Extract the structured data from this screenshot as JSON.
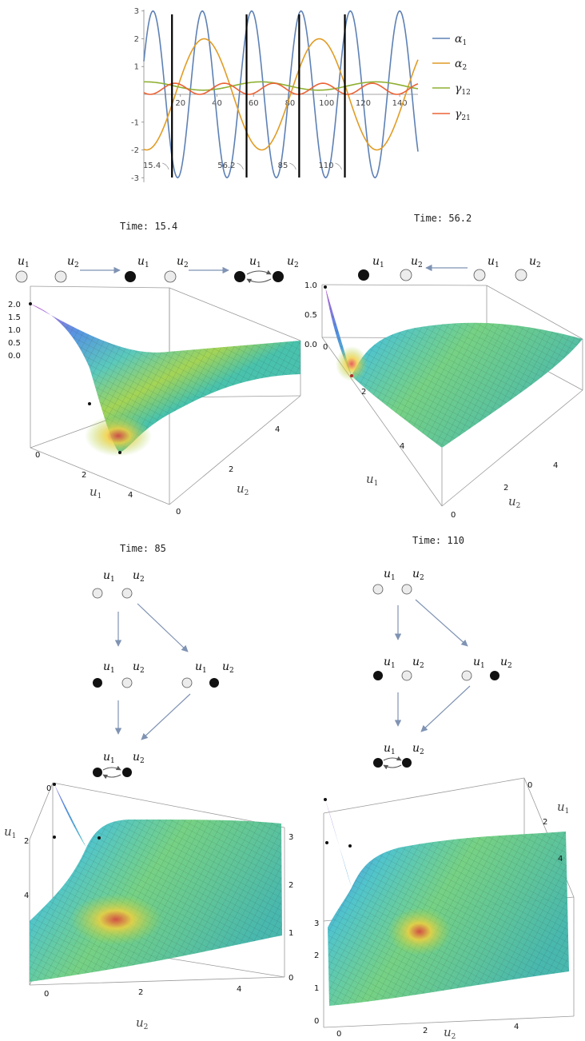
{
  "chart_data": {
    "type": "line",
    "xlim": [
      0,
      150
    ],
    "ylim": [
      -3.2,
      3.2
    ],
    "x_ticks": [
      "20",
      "40",
      "60",
      "80",
      "100",
      "120",
      "140"
    ],
    "y_ticks": [
      "3",
      "2",
      "1",
      "-1",
      "-2",
      "-3"
    ],
    "legend_placement": "right",
    "series": [
      {
        "name": "α1",
        "color": "#5e81b5",
        "amplitude": 3,
        "period": 27,
        "phase_peak": 5
      },
      {
        "name": "α2",
        "color": "#e19c24",
        "amplitude": 2,
        "period": 63,
        "phase_peak": 33
      },
      {
        "name": "γ12",
        "color": "#8fb032",
        "amplitude": 0.15,
        "offset": 0.3,
        "period": 63,
        "phase_peak": 1
      },
      {
        "name": "γ21",
        "color": "#eb6235",
        "amplitude": 0.2,
        "offset": 0.2,
        "period": 27,
        "phase_peak": 17
      }
    ],
    "vertical_markers": [
      {
        "x": 15.4,
        "label": "15.4"
      },
      {
        "x": 56.2,
        "label": "56.2"
      },
      {
        "x": 85,
        "label": "85"
      },
      {
        "x": 110,
        "label": "110"
      }
    ]
  },
  "legend": [
    {
      "base": "α",
      "sub": "1"
    },
    {
      "base": "α",
      "sub": "2"
    },
    {
      "base": "γ",
      "sub": "12"
    },
    {
      "base": "γ",
      "sub": "21"
    }
  ],
  "panels": [
    {
      "time_label": "Time: 15.4",
      "z_ticks": [
        "2.0",
        "1.5",
        "1.0",
        "0.5",
        "0.0"
      ],
      "u1_ticks": [
        "0",
        "2",
        "4"
      ],
      "u2_ticks": [
        "0",
        "2",
        "4"
      ]
    },
    {
      "time_label": "Time: 56.2",
      "z_ticks": [
        "1.0",
        "0.5",
        "0.0"
      ],
      "u1_ticks": [
        "0",
        "2",
        "4"
      ],
      "u2_ticks": [
        "0",
        "2",
        "4"
      ]
    },
    {
      "time_label": "Time: 85",
      "z_ticks": [
        "3",
        "2",
        "1",
        "0"
      ],
      "u1_ticks": [
        "0",
        "2",
        "4"
      ],
      "u2_ticks": [
        "0",
        "2",
        "4"
      ]
    },
    {
      "time_label": "Time: 110",
      "z_ticks": [
        "3",
        "2",
        "1",
        "0"
      ],
      "u1_ticks": [
        "0",
        "2",
        "4"
      ],
      "u2_ticks": [
        "0",
        "2",
        "4"
      ]
    }
  ],
  "node_labels": {
    "u1": "u",
    "u1_sub": "1",
    "u2": "u",
    "u2_sub": "2"
  },
  "colors": {
    "grid": "#cccccc",
    "axis": "#888888",
    "node_filled": "#111111",
    "node_empty": "#ececec",
    "arrow": "#7f93b3"
  }
}
